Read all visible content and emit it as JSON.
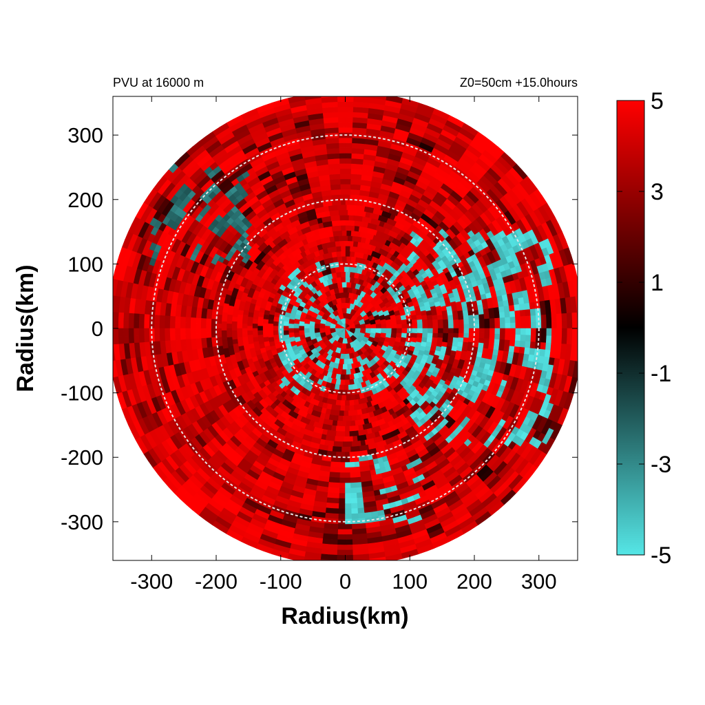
{
  "chart_data": {
    "type": "heatmap",
    "title": "PVU at 16000 m",
    "subtitle": "Z0=50cm  +15.0hours",
    "xlabel": "Radius(km)",
    "ylabel": "Radius(km)",
    "xlim": [
      -360,
      360
    ],
    "ylim": [
      -360,
      360
    ],
    "x_ticks": [
      -300,
      -200,
      -100,
      0,
      100,
      200,
      300
    ],
    "y_ticks": [
      300,
      200,
      100,
      0,
      -100,
      -200,
      -300
    ],
    "domain_radius_km": 368,
    "range_rings_km": [
      100,
      200,
      300
    ],
    "colorbar": {
      "min": -5,
      "max": 5,
      "ticks": [
        5,
        3,
        1,
        -1,
        -3,
        -5
      ],
      "colors": [
        "#55e6e6",
        "#2a7373",
        "#000000",
        "#7f0000",
        "#ff0000"
      ]
    },
    "field_summary": {
      "dominant_value": 5,
      "negative_regions": [
        {
          "description": "east-northeast sector",
          "x_range_km": [
            100,
            320
          ],
          "y_range_km": [
            -180,
            150
          ],
          "value": -5
        },
        {
          "description": "inner core ring",
          "x_range_km": [
            -100,
            100
          ],
          "y_range_km": [
            -100,
            100
          ],
          "value": -5
        },
        {
          "description": "south sector",
          "x_range_km": [
            0,
            120
          ],
          "y_range_km": [
            -300,
            -200
          ],
          "value": -5
        },
        {
          "description": "northwest outer band",
          "x_range_km": [
            -300,
            -150
          ],
          "y_range_km": [
            100,
            250
          ],
          "value": -3
        }
      ]
    }
  }
}
